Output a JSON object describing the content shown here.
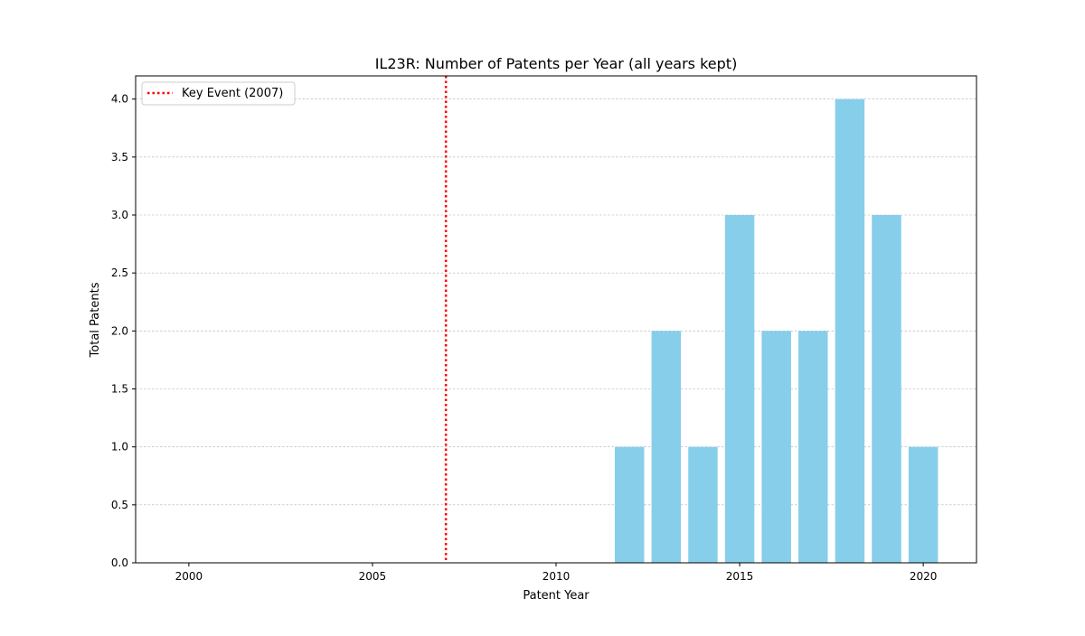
{
  "chart_data": {
    "type": "bar",
    "title": "IL23R: Number of Patents per Year (all years kept)",
    "xlabel": "Patent Year",
    "ylabel": "Total Patents",
    "x": [
      2012,
      2013,
      2014,
      2015,
      2016,
      2017,
      2018,
      2019,
      2020
    ],
    "values": [
      1,
      2,
      1,
      3,
      2,
      2,
      4,
      3,
      1
    ],
    "xlim": [
      1998.55,
      2021.45
    ],
    "ylim": [
      0,
      4.2
    ],
    "xticks": [
      2000,
      2005,
      2010,
      2015,
      2020
    ],
    "xtick_labels": [
      "2000",
      "2005",
      "2010",
      "2015",
      "2020"
    ],
    "yticks": [
      0,
      0.5,
      1,
      1.5,
      2,
      2.5,
      3,
      3.5,
      4
    ],
    "ytick_labels": [
      "0.0",
      "0.5",
      "1.0",
      "1.5",
      "2.0",
      "2.5",
      "3.0",
      "3.5",
      "4.0"
    ],
    "grid": "y-dashed",
    "bar_color": "#87CEEB",
    "annotations": [
      {
        "type": "vline",
        "x": 2007,
        "color": "#FF0000",
        "style": "dotted",
        "label": "Key Event (2007)"
      }
    ],
    "legend": {
      "placement": "top-left",
      "entries": [
        "Key Event (2007)"
      ]
    }
  }
}
